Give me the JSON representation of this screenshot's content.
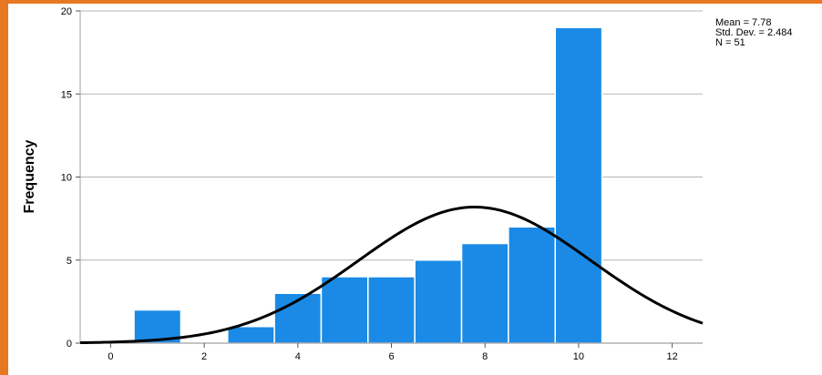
{
  "chart_data": {
    "type": "bar",
    "title": "",
    "xlabel": "",
    "ylabel": "Frequency",
    "xlim": [
      -0.65,
      12.65
    ],
    "ylim": [
      0,
      20
    ],
    "x_ticks": [
      0,
      2,
      4,
      6,
      8,
      10,
      12
    ],
    "y_ticks": [
      0,
      5,
      10,
      15,
      20
    ],
    "grid": "horizontal",
    "bin_width": 1,
    "bins": [
      {
        "x": 1,
        "value": 2
      },
      {
        "x": 3,
        "value": 1
      },
      {
        "x": 4,
        "value": 3
      },
      {
        "x": 5,
        "value": 4
      },
      {
        "x": 6,
        "value": 4
      },
      {
        "x": 7,
        "value": 5
      },
      {
        "x": 8,
        "value": 6
      },
      {
        "x": 9,
        "value": 7
      },
      {
        "x": 10,
        "value": 19
      }
    ],
    "normal_curve": {
      "mean": 7.78,
      "std_dev": 2.484,
      "n": 51
    },
    "stats": {
      "mean_label": "Mean = 7.78",
      "sd_label": "Std. Dev. = 2.484",
      "n_label": "N = 51"
    },
    "colors": {
      "bar": "#1a8ae6",
      "curve": "#000000",
      "grid": "#b4b4b4",
      "frame_border": "#e87722"
    }
  }
}
